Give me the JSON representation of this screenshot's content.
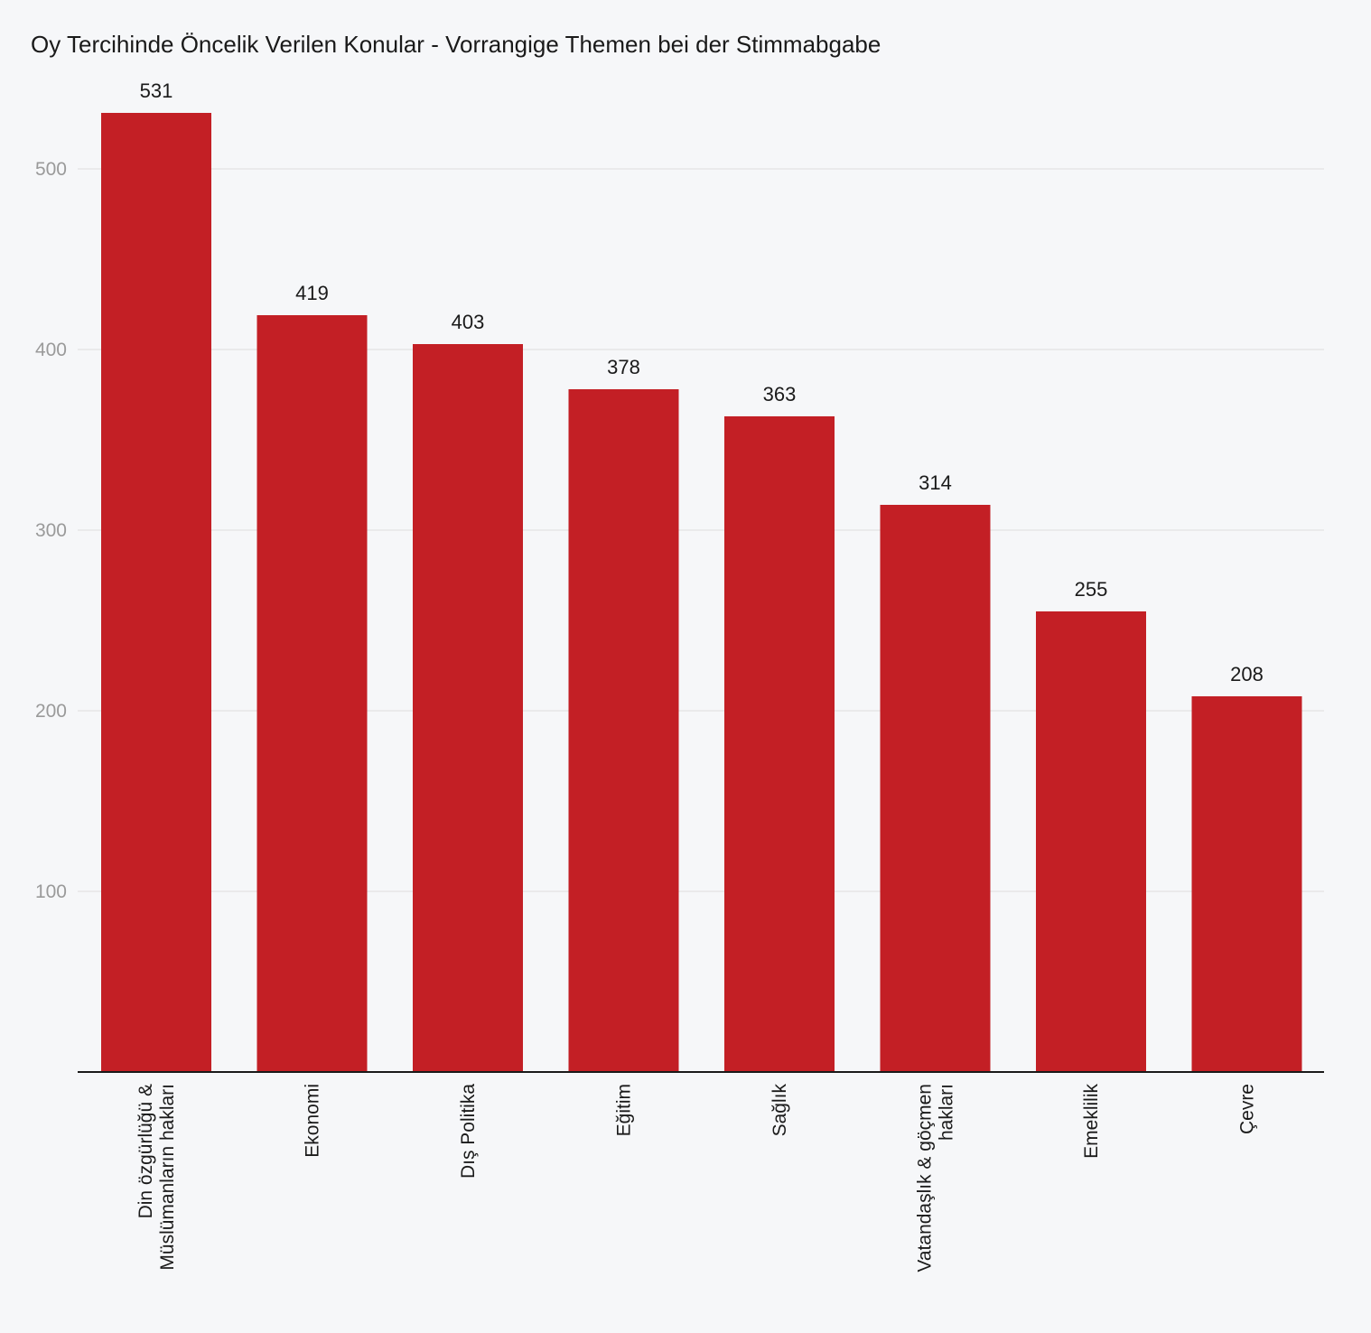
{
  "chart_data": {
    "type": "bar",
    "title": "Oy Tercihinde Öncelik Verilen Konular - Vorrangige Themen bei der Stimmabgabe",
    "categories": [
      [
        "Din özgürlüğü &",
        "Müslümanların hakları"
      ],
      [
        "Ekonomi"
      ],
      [
        "Dış Politika"
      ],
      [
        "Eğitim"
      ],
      [
        "Sağlık"
      ],
      [
        "Vatandaşlık & göçmen",
        "hakları"
      ],
      [
        "Emeklilik"
      ],
      [
        "Çevre"
      ]
    ],
    "values": [
      531,
      419,
      403,
      378,
      363,
      314,
      255,
      208
    ],
    "value_labels": [
      "531",
      "419",
      "403",
      "378",
      "363",
      "314",
      "255",
      "208"
    ],
    "yticks": [
      "100",
      "200",
      "300",
      "400",
      "500"
    ],
    "ylim": [
      0,
      530
    ],
    "grid": true,
    "xlabel": "",
    "ylabel": "",
    "bar_color": "#c31f25"
  }
}
